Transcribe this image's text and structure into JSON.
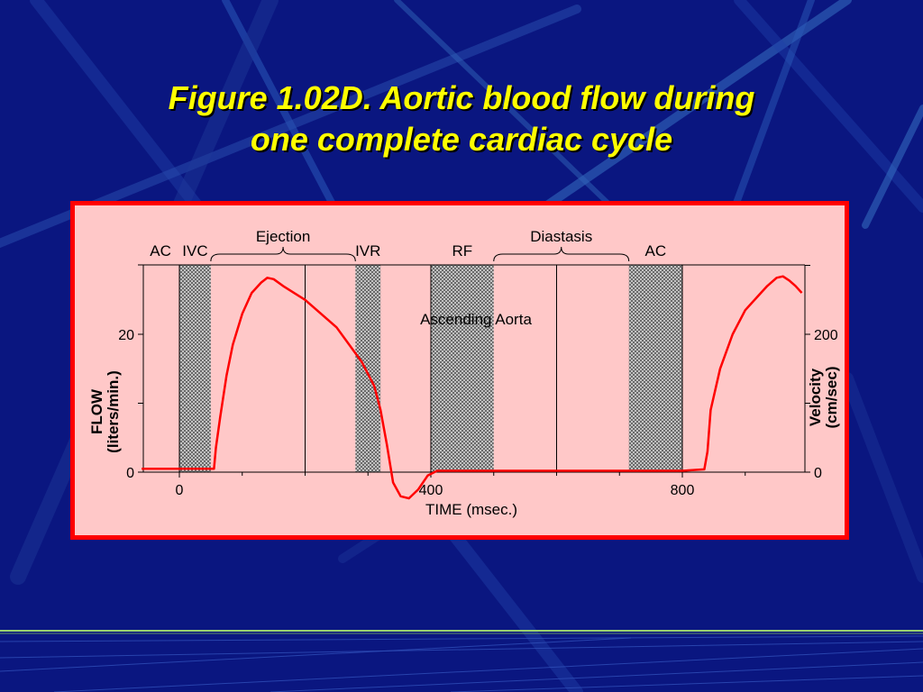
{
  "slide": {
    "title_line1": "Figure 1.02D. Aortic blood flow during",
    "title_line2": "one complete cardiac cycle",
    "colors": {
      "background": "#0a1680",
      "title": "#ffff00",
      "panel_border": "#ff0000",
      "panel_fill": "#ffc8c8",
      "curve": "#ff0000"
    }
  },
  "chart_data": {
    "type": "line",
    "title": "Ascending Aorta",
    "xlabel": "TIME (msec.)",
    "ylabel_left": [
      "FLOW",
      "(liters/min.)"
    ],
    "ylabel_right": [
      "Velocity",
      "(cm/sec)"
    ],
    "xlim": [
      -60,
      1000
    ],
    "ylim_left": [
      0,
      32
    ],
    "ylim_right": [
      0,
      310
    ],
    "x_ticks": [
      0,
      400,
      800
    ],
    "y_ticks_left": [
      0,
      20
    ],
    "y_ticks_right": [
      0,
      200
    ],
    "grid": false,
    "phases": [
      {
        "label": "AC",
        "start": -60,
        "end": 0,
        "shaded": false
      },
      {
        "label": "IVC",
        "start": 0,
        "end": 50,
        "shaded": true
      },
      {
        "label": "Ejection",
        "start": 50,
        "end": 280,
        "shaded": false
      },
      {
        "label": "IVR",
        "start": 280,
        "end": 320,
        "shaded": true
      },
      {
        "label": "RF",
        "start": 400,
        "end": 500,
        "shaded": true
      },
      {
        "label": "Diastasis",
        "start": 500,
        "end": 715,
        "shaded": false
      },
      {
        "label": "AC",
        "start": 715,
        "end": 800,
        "shaded": true
      }
    ],
    "vertical_lines": [
      0,
      200,
      400,
      600,
      800
    ],
    "series": [
      {
        "name": "",
        "x": [
          -60,
          0,
          55,
          58,
          65,
          75,
          85,
          100,
          115,
          130,
          140,
          150,
          165,
          200,
          250,
          290,
          310,
          320,
          330,
          340,
          352,
          365,
          380,
          395,
          410,
          440,
          800,
          835,
          840,
          845,
          860,
          880,
          900,
          920,
          935,
          950,
          960,
          970,
          980,
          990
        ],
        "y": [
          0.5,
          0.5,
          0.5,
          3.5,
          8,
          14,
          18.5,
          23,
          26,
          27.5,
          28.2,
          28,
          27,
          25,
          21,
          16,
          12.5,
          9,
          4,
          -1.5,
          -3.5,
          -3.8,
          -2.5,
          -0.5,
          0.2,
          0.2,
          0.2,
          0.4,
          3,
          9,
          15,
          20,
          23.5,
          25.5,
          27,
          28.2,
          28.4,
          27.8,
          27,
          26
        ]
      }
    ]
  }
}
